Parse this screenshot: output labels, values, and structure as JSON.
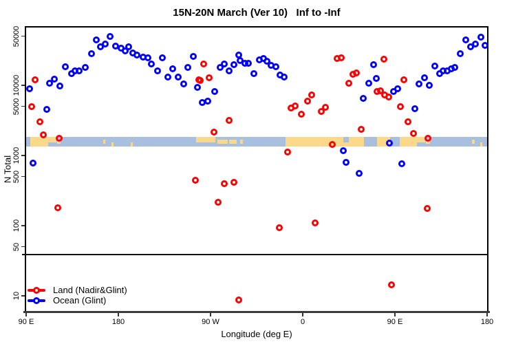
{
  "title": "15N-20N March (Ver 10)   Inf to -Inf",
  "x_axis": {
    "label": "Longitude (deg E)",
    "ticks": [
      {
        "deg": 0,
        "label": "90 E"
      },
      {
        "deg": 90,
        "label": "180"
      },
      {
        "deg": 180,
        "label": "90 W"
      },
      {
        "deg": 270,
        "label": "0"
      },
      {
        "deg": 360,
        "label": "90 E"
      },
      {
        "deg": 450,
        "label": "180"
      }
    ]
  },
  "y_axis": {
    "label": "N Total",
    "ticks": [
      50000,
      10000,
      5000,
      1000,
      500,
      100,
      50,
      10
    ],
    "log": true
  },
  "reference_line": {
    "n": 40
  },
  "legend": {
    "items": [
      {
        "label": "Land (Nadir&Glint)",
        "color": "#ff0000"
      },
      {
        "label": "Ocean (Glint)",
        "color": "#0000ff"
      }
    ]
  },
  "colors": {
    "land_points": "#ff0000",
    "ocean_points": "#0000ff",
    "band_ocean": "#a9bfdf",
    "band_land": "#fbd88a",
    "axis": "#000000"
  },
  "map_band": {
    "n_center": 1800,
    "description": "land/ocean strip for 15N-20N",
    "land_segments": [
      {
        "from": 4.0,
        "to": 21.5,
        "pos": "full"
      },
      {
        "from": 21.5,
        "to": 29.6,
        "pos": "top"
      },
      {
        "from": 30.2,
        "to": 33.6,
        "pos": "mid"
      },
      {
        "from": 75.2,
        "to": 77.2,
        "pos": "mid"
      },
      {
        "from": 83.3,
        "to": 85.3,
        "pos": "bottom"
      },
      {
        "from": 102.1,
        "to": 104.1,
        "pos": "bottom"
      },
      {
        "from": 165.9,
        "to": 176.6,
        "pos": "top"
      },
      {
        "from": 176.6,
        "to": 184.7,
        "pos": "top"
      },
      {
        "from": 186.7,
        "to": 196.8,
        "pos": "mid"
      },
      {
        "from": 198.1,
        "to": 205.5,
        "pos": "mid"
      },
      {
        "from": 208.9,
        "to": 211.5,
        "pos": "mid"
      },
      {
        "from": 253.2,
        "to": 309.6,
        "pos": "full"
      },
      {
        "from": 309.6,
        "to": 315.0,
        "pos": "bottom"
      },
      {
        "from": 315.0,
        "to": 329.8,
        "pos": "full"
      },
      {
        "from": 342.5,
        "to": 355.3,
        "pos": "full"
      },
      {
        "from": 364.6,
        "to": 381.4,
        "pos": "full"
      },
      {
        "from": 381.4,
        "to": 389.4,
        "pos": "top"
      },
      {
        "from": 390.1,
        "to": 394.1,
        "pos": "mid"
      },
      {
        "from": 435.1,
        "to": 437.8,
        "pos": "mid"
      },
      {
        "from": 443.1,
        "to": 445.2,
        "pos": "bottom"
      }
    ]
  },
  "chart_data": {
    "type": "scatter",
    "title": "15N-20N March (Ver 10)   Inf to -Inf",
    "xlabel": "Longitude (deg E)",
    "ylabel": "N Total",
    "x_unit": "degrees east of 90E; axis spans 90E eastward 450 deg to 180",
    "xlim": [
      0,
      450
    ],
    "ylim": [
      6,
      67000
    ],
    "ylog": true,
    "series": [
      {
        "name": "Land (Nadir&Glint)",
        "color": "#ff0000",
        "points": [
          [
            5.2,
            4970
          ],
          [
            8.5,
            11970
          ],
          [
            13.2,
            3040
          ],
          [
            17,
            1990
          ],
          [
            32,
            1760
          ],
          [
            30.9,
            179
          ],
          [
            165.4,
            440
          ],
          [
            168.8,
            12100
          ],
          [
            173.1,
            20000
          ],
          [
            169.9,
            11600
          ],
          [
            178.8,
            12740
          ],
          [
            183.1,
            2150
          ],
          [
            187.2,
            215
          ],
          [
            193.4,
            400
          ],
          [
            202.8,
            415
          ],
          [
            198.3,
            3160
          ],
          [
            247.2,
            94
          ],
          [
            255,
            1130
          ],
          [
            258.7,
            4780
          ],
          [
            262.7,
            5040
          ],
          [
            268.8,
            3900
          ],
          [
            274.4,
            5900
          ],
          [
            278.4,
            7240
          ],
          [
            282.2,
            109
          ],
          [
            288.2,
            4215
          ],
          [
            291.8,
            4890
          ],
          [
            298.9,
            1435
          ],
          [
            303.6,
            24100
          ],
          [
            307.6,
            24500
          ],
          [
            315.2,
            10700
          ],
          [
            318.8,
            14450
          ],
          [
            322.6,
            15100
          ],
          [
            327.1,
            2370
          ],
          [
            342.7,
            8110
          ],
          [
            346.1,
            8410
          ],
          [
            349.4,
            23700
          ],
          [
            349.9,
            7240
          ],
          [
            353.9,
            6810
          ],
          [
            365.5,
            4970
          ],
          [
            368.5,
            12100
          ],
          [
            372.9,
            3040
          ],
          [
            378.1,
            2060
          ],
          [
            392.4,
            1760
          ],
          [
            391.3,
            177
          ],
          [
            207.3,
            8.7
          ],
          [
            356.8,
            14.5
          ]
        ]
      },
      {
        "name": "Ocean (Glint)",
        "color": "#0000ff",
        "points": [
          [
            3.2,
            8900
          ],
          [
            6.9,
            780
          ],
          [
            19.9,
            4540
          ],
          [
            23,
            10700
          ],
          [
            27.7,
            12300
          ],
          [
            33.1,
            9780
          ],
          [
            38.5,
            18500
          ],
          [
            44.3,
            14800
          ],
          [
            47.9,
            16000
          ],
          [
            51.7,
            16200
          ],
          [
            57.8,
            17900
          ],
          [
            64,
            28400
          ],
          [
            68.5,
            44700
          ],
          [
            72.5,
            35200
          ],
          [
            77,
            38500
          ],
          [
            81.9,
            50000
          ],
          [
            87.5,
            36500
          ],
          [
            92.7,
            33800
          ],
          [
            96.5,
            30700
          ],
          [
            100.3,
            35200
          ],
          [
            103.9,
            29100
          ],
          [
            108.3,
            27000
          ],
          [
            114,
            25400
          ],
          [
            118.9,
            24700
          ],
          [
            122.2,
            20000
          ],
          [
            128.3,
            16000
          ],
          [
            132.8,
            24700
          ],
          [
            138.5,
            13200
          ],
          [
            143.1,
            17200
          ],
          [
            148.4,
            13200
          ],
          [
            153.6,
            10500
          ],
          [
            158,
            17900
          ],
          [
            163.2,
            26000
          ],
          [
            167,
            9400
          ],
          [
            172.1,
            5650
          ],
          [
            177.1,
            5900
          ],
          [
            184.2,
            8220
          ],
          [
            189.4,
            17900
          ],
          [
            193.2,
            20000
          ],
          [
            198.3,
            16000
          ],
          [
            202.8,
            19550
          ],
          [
            207.3,
            27000
          ],
          [
            209.1,
            22700
          ],
          [
            213.6,
            20750
          ],
          [
            216.7,
            20460
          ],
          [
            222.5,
            14800
          ],
          [
            227.5,
            23200
          ],
          [
            231.5,
            24100
          ],
          [
            235.3,
            22000
          ],
          [
            239.1,
            19200
          ],
          [
            243.6,
            18500
          ],
          [
            248,
            14000
          ],
          [
            252.1,
            13200
          ],
          [
            309.8,
            1170
          ],
          [
            312.5,
            800
          ],
          [
            325.2,
            560
          ],
          [
            329.3,
            6470
          ],
          [
            334.4,
            10700
          ],
          [
            338.9,
            19550
          ],
          [
            342,
            12450
          ],
          [
            354.4,
            1490
          ],
          [
            358.8,
            8110
          ],
          [
            362.4,
            8930
          ],
          [
            366.7,
            760
          ],
          [
            379.6,
            4680
          ],
          [
            383.5,
            10400
          ],
          [
            388.6,
            12740
          ],
          [
            393.8,
            9930
          ],
          [
            399.1,
            18900
          ],
          [
            403.6,
            14800
          ],
          [
            407.2,
            16000
          ],
          [
            411,
            16240
          ],
          [
            414.8,
            17200
          ],
          [
            418.4,
            18100
          ],
          [
            423.8,
            28400
          ],
          [
            428.9,
            44700
          ],
          [
            434,
            35600
          ],
          [
            438.5,
            38500
          ],
          [
            443.9,
            48200
          ],
          [
            447.9,
            37250
          ]
        ]
      }
    ],
    "legend_position": "bottom-left",
    "grid": false,
    "reference_line_n": 40
  }
}
